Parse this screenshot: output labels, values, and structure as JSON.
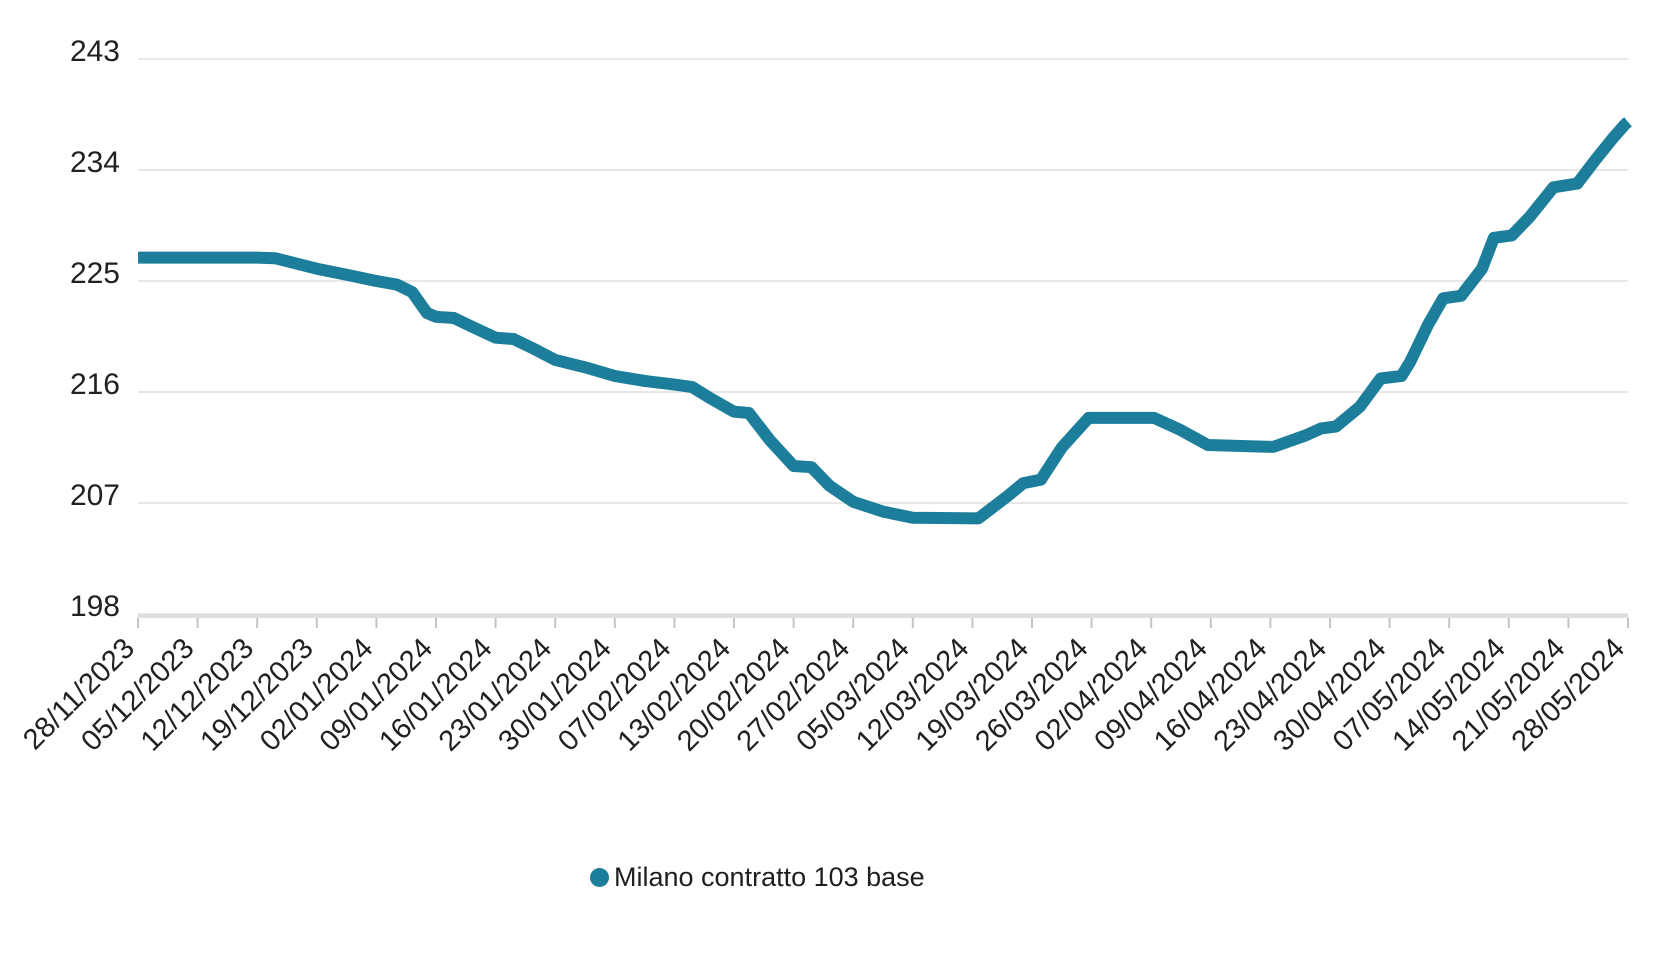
{
  "chart_data": {
    "type": "line",
    "title": "",
    "xlabel": "",
    "ylabel": "",
    "ylim": [
      198,
      243
    ],
    "y_ticks": [
      243,
      234,
      225,
      216,
      207,
      198
    ],
    "grid": true,
    "legend_position": "bottom",
    "categories": [
      "28/11/2023",
      "05/12/2023",
      "12/12/2023",
      "19/12/2023",
      "02/01/2024",
      "09/01/2024",
      "16/01/2024",
      "23/01/2024",
      "30/01/2024",
      "07/02/2024",
      "13/02/2024",
      "20/02/2024",
      "27/02/2024",
      "05/03/2024",
      "12/03/2024",
      "19/03/2024",
      "26/03/2024",
      "02/04/2024",
      "09/04/2024",
      "16/04/2024",
      "23/04/2024",
      "30/04/2024",
      "07/05/2024",
      "14/05/2024",
      "21/05/2024",
      "28/05/2024"
    ],
    "series": [
      {
        "name": "Milano contratto 103 base",
        "color": "#1C7E9A",
        "values": [
          226.9,
          226.9,
          226.9,
          226.0,
          225.0,
          222.1,
          220.4,
          218.6,
          217.3,
          216.6,
          214.4,
          210.0,
          207.1,
          205.8,
          205.8,
          208.8,
          213.9,
          213.9,
          211.7,
          211.6,
          213.1,
          217.2,
          223.6,
          228.6,
          232.7,
          237.9
        ],
        "dense_points": [
          [
            0,
            226.9
          ],
          [
            2,
            226.9
          ],
          [
            2.3,
            226.85
          ],
          [
            3,
            226.0
          ],
          [
            3.5,
            225.5
          ],
          [
            4,
            225.0
          ],
          [
            4.35,
            224.7
          ],
          [
            4.6,
            224.1
          ],
          [
            4.85,
            222.4
          ],
          [
            5,
            222.1
          ],
          [
            5.3,
            222.0
          ],
          [
            5.6,
            221.3
          ],
          [
            6,
            220.4
          ],
          [
            6.3,
            220.3
          ],
          [
            6.6,
            219.6
          ],
          [
            7,
            218.6
          ],
          [
            7.5,
            218.0
          ],
          [
            8,
            217.3
          ],
          [
            8.5,
            216.9
          ],
          [
            9,
            216.6
          ],
          [
            9.3,
            216.4
          ],
          [
            9.6,
            215.5
          ],
          [
            10,
            214.4
          ],
          [
            10.25,
            214.3
          ],
          [
            10.6,
            212.1
          ],
          [
            11,
            210.0
          ],
          [
            11.3,
            209.9
          ],
          [
            11.6,
            208.4
          ],
          [
            12,
            207.1
          ],
          [
            12.5,
            206.3
          ],
          [
            13,
            205.8
          ],
          [
            14.1,
            205.75
          ],
          [
            14.6,
            207.6
          ],
          [
            14.85,
            208.6
          ],
          [
            15.15,
            208.9
          ],
          [
            15.5,
            211.5
          ],
          [
            15.95,
            213.9
          ],
          [
            17.05,
            213.9
          ],
          [
            17.5,
            212.9
          ],
          [
            17.95,
            211.7
          ],
          [
            19.05,
            211.55
          ],
          [
            19.6,
            212.5
          ],
          [
            19.85,
            213.05
          ],
          [
            20.1,
            213.2
          ],
          [
            20.5,
            214.8
          ],
          [
            20.85,
            217.1
          ],
          [
            21.2,
            217.3
          ],
          [
            21.35,
            218.5
          ],
          [
            21.65,
            221.5
          ],
          [
            21.9,
            223.6
          ],
          [
            22.2,
            223.8
          ],
          [
            22.55,
            226.0
          ],
          [
            22.75,
            228.5
          ],
          [
            23.05,
            228.7
          ],
          [
            23.35,
            230.2
          ],
          [
            23.75,
            232.6
          ],
          [
            24.15,
            232.9
          ],
          [
            24.45,
            234.8
          ],
          [
            24.75,
            236.6
          ],
          [
            24.95,
            237.7
          ],
          [
            25,
            237.9
          ]
        ]
      }
    ]
  },
  "legend": {
    "label": "Milano contratto 103 base"
  },
  "colors": {
    "series_teal": "#1C7E9A",
    "text": "#212121",
    "gridline": "#E7E7E7",
    "axis_line": "#DEDEDE",
    "tick": "#C4C4C4",
    "background": "#FFFFFF"
  }
}
